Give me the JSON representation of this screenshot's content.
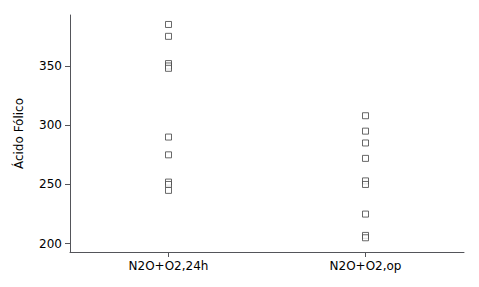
{
  "chart_data": {
    "type": "scatter",
    "ylabel": "Ácido Fólico",
    "categories": [
      "N2O+O2,24h",
      "N2O+O2,op"
    ],
    "values": [
      [
        385,
        375,
        352,
        350,
        348,
        290,
        275,
        252,
        250,
        245
      ],
      [
        308,
        295,
        285,
        272,
        253,
        250,
        225,
        207,
        205
      ]
    ],
    "ylim": [
      193,
      393
    ],
    "yticks": [
      200,
      250,
      300,
      350
    ],
    "color": "#444444",
    "marker": "square",
    "grid": false
  }
}
